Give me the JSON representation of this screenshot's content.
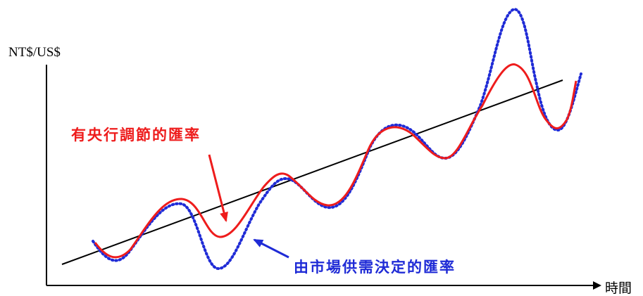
{
  "axes": {
    "y_label": "NT$/US$",
    "x_label": "時間"
  },
  "annotations": {
    "managed": "有央行調節的匯率",
    "market": "由市場供需決定的匯率"
  },
  "colors": {
    "managed": "#ee1c1c",
    "market": "#1f2bd6",
    "trend": "#000000",
    "axes": "#000000"
  }
}
